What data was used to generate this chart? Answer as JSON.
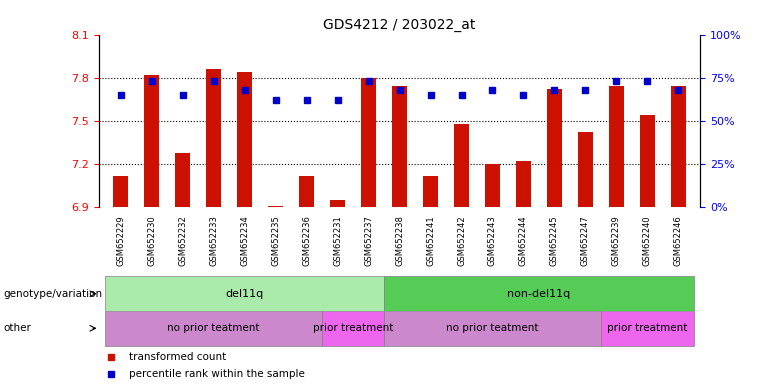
{
  "title": "GDS4212 / 203022_at",
  "samples": [
    "GSM652229",
    "GSM652230",
    "GSM652232",
    "GSM652233",
    "GSM652234",
    "GSM652235",
    "GSM652236",
    "GSM652231",
    "GSM652237",
    "GSM652238",
    "GSM652241",
    "GSM652242",
    "GSM652243",
    "GSM652244",
    "GSM652245",
    "GSM652247",
    "GSM652239",
    "GSM652240",
    "GSM652246"
  ],
  "bar_values": [
    7.12,
    7.82,
    7.28,
    7.86,
    7.84,
    6.91,
    7.12,
    6.95,
    7.8,
    7.74,
    7.12,
    7.48,
    7.2,
    7.22,
    7.72,
    7.42,
    7.74,
    7.54,
    7.74
  ],
  "dot_values": [
    65,
    73,
    65,
    73,
    68,
    62,
    62,
    62,
    73,
    68,
    65,
    65,
    68,
    65,
    68,
    68,
    73,
    73,
    68
  ],
  "ylim_left": [
    6.9,
    8.1
  ],
  "ylim_right": [
    0,
    100
  ],
  "yticks_left": [
    6.9,
    7.2,
    7.5,
    7.8,
    8.1
  ],
  "yticks_right": [
    0,
    25,
    50,
    75,
    100
  ],
  "ytick_labels_right": [
    "0%",
    "25%",
    "50%",
    "75%",
    "100%"
  ],
  "bar_color": "#cc1100",
  "dot_color": "#0000cc",
  "dot_marker": "s",
  "bar_width": 0.5,
  "genotype_groups": [
    {
      "label": "del11q",
      "start": 0,
      "end": 9,
      "color": "#aaeaaa"
    },
    {
      "label": "non-del11q",
      "start": 9,
      "end": 19,
      "color": "#55cc55"
    }
  ],
  "other_groups": [
    {
      "label": "no prior teatment",
      "start": 0,
      "end": 7,
      "color": "#cc88cc"
    },
    {
      "label": "prior treatment",
      "start": 7,
      "end": 9,
      "color": "#ee66ee"
    },
    {
      "label": "no prior teatment",
      "start": 9,
      "end": 16,
      "color": "#cc88cc"
    },
    {
      "label": "prior treatment",
      "start": 16,
      "end": 19,
      "color": "#ee66ee"
    }
  ],
  "legend_items": [
    {
      "label": "transformed count",
      "color": "#cc1100"
    },
    {
      "label": "percentile rank within the sample",
      "color": "#0000cc"
    }
  ],
  "genotype_row_label": "genotype/variation",
  "other_row_label": "other",
  "hgrid_yticks": [
    7.2,
    7.5,
    7.8
  ],
  "hgrid_color": "black",
  "hgrid_style": "dotted",
  "fig_width": 7.61,
  "fig_height": 3.84,
  "fig_dpi": 100
}
